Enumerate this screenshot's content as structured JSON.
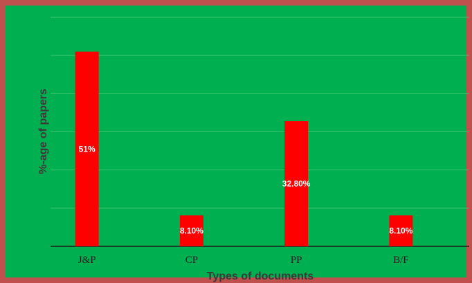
{
  "chart_data": {
    "type": "bar",
    "categories": [
      "J&P",
      "CP",
      "PP",
      "B/F"
    ],
    "values": [
      51,
      8.1,
      32.8,
      8.1
    ],
    "data_labels": [
      "51%",
      "8.10%",
      "32.80%",
      "8.10%"
    ],
    "title": "",
    "xlabel": "Types of documents",
    "ylabel": "%-age of papers",
    "ylim": [
      0,
      60
    ],
    "grid": true,
    "legend": "none",
    "bar_color": "#ff0000",
    "background_color": "#00b050",
    "border_color": "#c0504d"
  }
}
